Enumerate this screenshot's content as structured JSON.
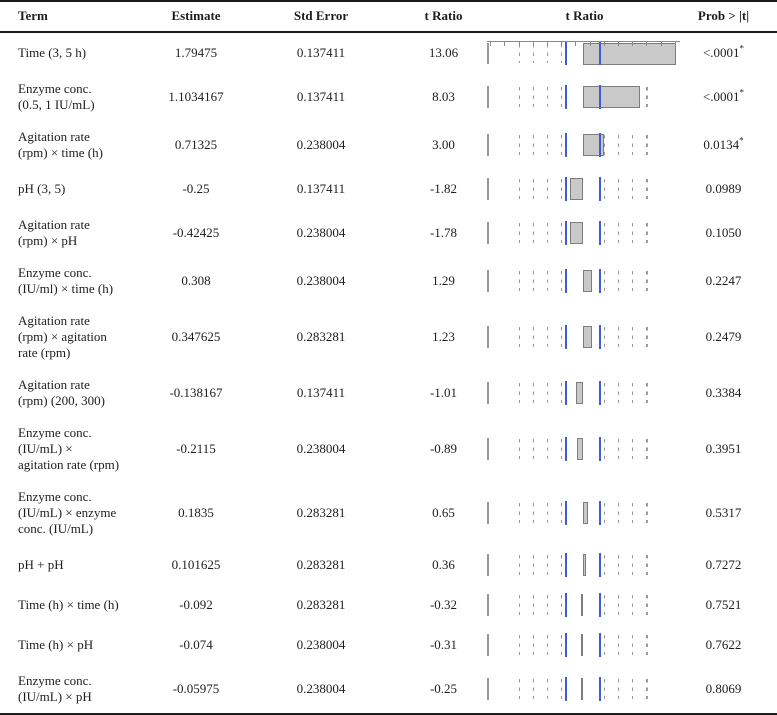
{
  "header": {
    "term": "Term",
    "estimate": "Estimate",
    "std_error": "Std Error",
    "t_ratio": "t Ratio",
    "t_ratio_plot": "t Ratio",
    "prob": "Prob > |t|"
  },
  "star": "*",
  "rows": [
    {
      "term_lines": [
        "Time (3, 5 h)"
      ],
      "estimate": "1.79475",
      "std_error": "0.137411",
      "t_ratio": "13.06",
      "t": 13.06,
      "prob": "<.0001",
      "starred": true
    },
    {
      "term_lines": [
        "Enzyme conc.",
        "(0.5, 1 IU/mL)"
      ],
      "estimate": "1.1034167",
      "std_error": "0.137411",
      "t_ratio": "8.03",
      "t": 8.03,
      "prob": "<.0001",
      "starred": true
    },
    {
      "term_lines": [
        "Agitation rate",
        "(rpm) × time (h)"
      ],
      "estimate": "0.71325",
      "std_error": "0.238004",
      "t_ratio": "3.00",
      "t": 3.0,
      "prob": "0.0134",
      "starred": true
    },
    {
      "term_lines": [
        "pH (3, 5)"
      ],
      "estimate": "-0.25",
      "std_error": "0.137411",
      "t_ratio": "-1.82",
      "t": -1.82,
      "prob": "0.0989",
      "starred": false
    },
    {
      "term_lines": [
        "Agitation rate",
        "(rpm) × pH"
      ],
      "estimate": "-0.42425",
      "std_error": "0.238004",
      "t_ratio": "-1.78",
      "t": -1.78,
      "prob": "0.1050",
      "starred": false
    },
    {
      "term_lines": [
        "Enzyme conc.",
        "(IU/ml) × time (h)"
      ],
      "estimate": "0.308",
      "std_error": "0.238004",
      "t_ratio": "1.29",
      "t": 1.29,
      "prob": "0.2247",
      "starred": false
    },
    {
      "term_lines": [
        "Agitation rate",
        "(rpm) × agitation",
        "rate (rpm)"
      ],
      "estimate": "0.347625",
      "std_error": "0.283281",
      "t_ratio": "1.23",
      "t": 1.23,
      "prob": "0.2479",
      "starred": false
    },
    {
      "term_lines": [
        "Agitation rate",
        "(rpm) (200, 300)"
      ],
      "estimate": "-0.138167",
      "std_error": "0.137411",
      "t_ratio": "-1.01",
      "t": -1.01,
      "prob": "0.3384",
      "starred": false
    },
    {
      "term_lines": [
        "Enzyme conc.",
        "(IU/mL) ×",
        "agitation rate (rpm)"
      ],
      "estimate": "-0.2115",
      "std_error": "0.238004",
      "t_ratio": "-0.89",
      "t": -0.89,
      "prob": "0.3951",
      "starred": false
    },
    {
      "term_lines": [
        "Enzyme conc.",
        "(IU/mL) × enzyme",
        "conc. (IU/mL)"
      ],
      "estimate": "0.1835",
      "std_error": "0.283281",
      "t_ratio": "0.65",
      "t": 0.65,
      "prob": "0.5317",
      "starred": false
    },
    {
      "term_lines": [
        "pH + pH"
      ],
      "estimate": "0.101625",
      "std_error": "0.283281",
      "t_ratio": "0.36",
      "t": 0.36,
      "prob": "0.7272",
      "starred": false
    },
    {
      "term_lines": [
        "Time (h) × time (h)"
      ],
      "estimate": "-0.092",
      "std_error": "0.283281",
      "t_ratio": "-0.32",
      "t": -0.32,
      "prob": "0.7521",
      "starred": false
    },
    {
      "term_lines": [
        "Time (h) × pH"
      ],
      "estimate": "-0.074",
      "std_error": "0.238004",
      "t_ratio": "-0.31",
      "t": -0.31,
      "prob": "0.7622",
      "starred": false
    },
    {
      "term_lines": [
        "Enzyme conc.",
        "(IU/mL) × pH"
      ],
      "estimate": "-0.05975",
      "std_error": "0.238004",
      "t_ratio": "-0.25",
      "t": -0.25,
      "prob": "0.8069",
      "starred": false
    }
  ],
  "chart_data": {
    "type": "bar",
    "orientation": "horizontal",
    "title": "t Ratio",
    "categories": [
      "Time (3, 5 h)",
      "Enzyme conc. (0.5, 1 IU/mL)",
      "Agitation rate (rpm) × time (h)",
      "pH (3, 5)",
      "Agitation rate (rpm) × pH",
      "Enzyme conc. (IU/ml) × time (h)",
      "Agitation rate (rpm) × agitation rate (rpm)",
      "Agitation rate (rpm) (200, 300)",
      "Enzyme conc. (IU/mL) × agitation rate (rpm)",
      "Enzyme conc. (IU/mL) × enzyme conc. (IU/mL)",
      "pH + pH",
      "Time (h) × time (h)",
      "Time (h) × pH",
      "Enzyme conc. (IU/mL) × pH"
    ],
    "values": [
      13.06,
      8.03,
      3.0,
      -1.82,
      -1.78,
      1.29,
      1.23,
      -1.01,
      -0.89,
      0.65,
      0.36,
      -0.32,
      -0.31,
      -0.25
    ],
    "xlim": [
      -13.5,
      13.5
    ],
    "gridlines": [
      -9,
      -7,
      -5,
      -3,
      3,
      5,
      7,
      9
    ],
    "grid_style": "dashed",
    "reference_lines": [
      -2.45,
      2.45
    ],
    "axis_ticks_top_row": [
      -13,
      -11,
      -9,
      -7,
      -5,
      -3,
      -1,
      1,
      3,
      5,
      7,
      9,
      11,
      13
    ],
    "legend": "none"
  },
  "colors": {
    "background": "#ffffff",
    "text": "#1d1d1d",
    "rule": "#1c1c1c",
    "grid_gray": "#9a9a9a",
    "blue_reference": "#3b5ed1",
    "bar_fill": "#c9c9c9",
    "bar_border": "#7d7d7d"
  }
}
